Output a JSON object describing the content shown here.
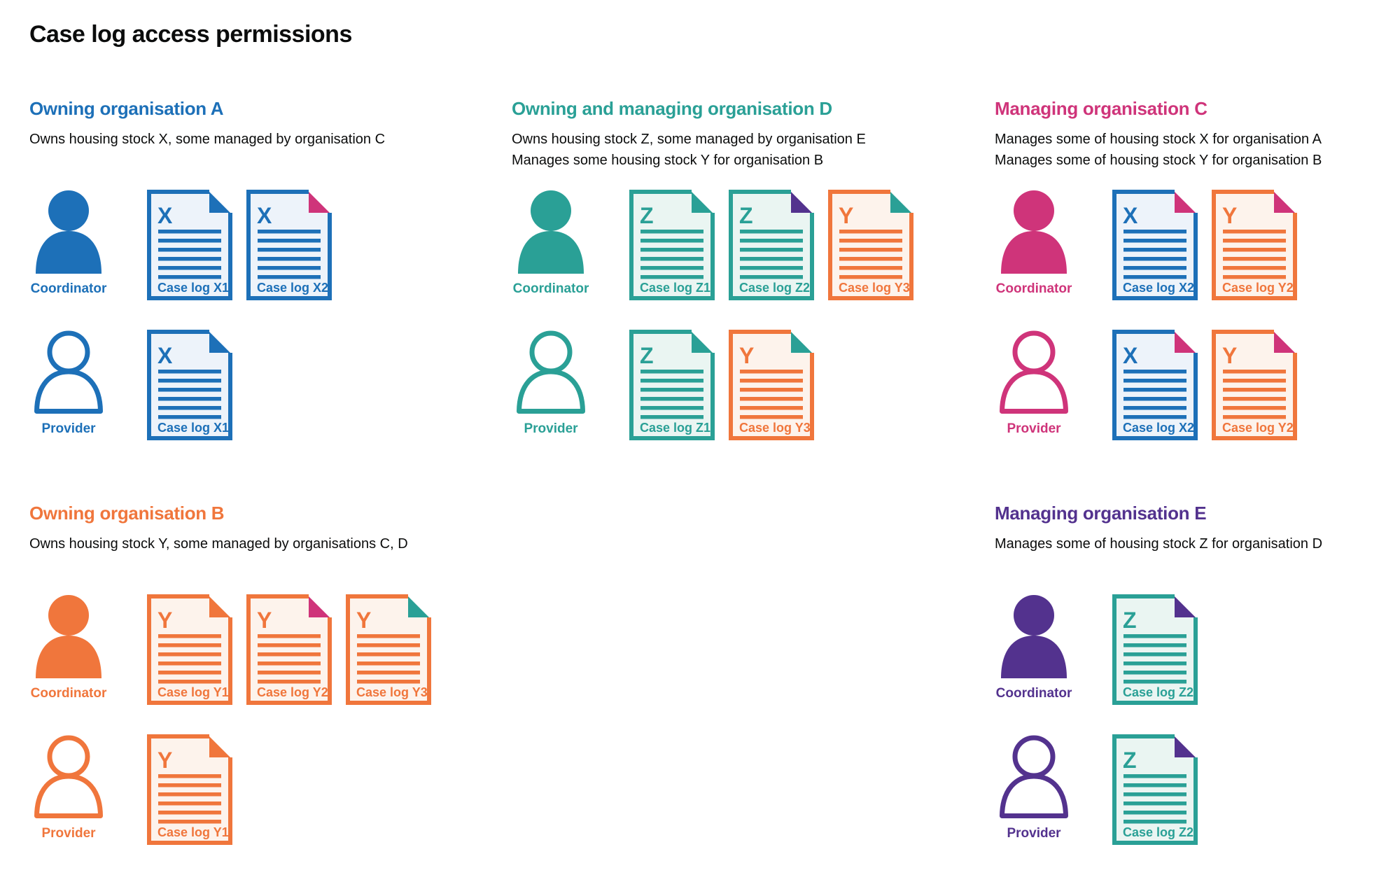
{
  "page": {
    "title": "Case log access permissions"
  },
  "palette": {
    "blue": "#1d70b8",
    "teal": "#2aa096",
    "pink": "#cf347a",
    "orange": "#f0763c",
    "purple": "#53328e",
    "text": "#0b0c0c",
    "blue_tint": "#edf3fa",
    "teal_tint": "#eaf5f2",
    "orange_tint": "#fdf3ec"
  },
  "organisations": [
    {
      "id": "A",
      "name": "Owning organisation A",
      "color": "blue",
      "col": 0,
      "row": 0,
      "description_lines": [
        "Owns housing stock X, some managed by organisation C"
      ],
      "roles": [
        {
          "label": "Coordinator",
          "person_style": "filled",
          "documents": [
            {
              "letter": "X",
              "label": "Case log X1",
              "stock": "blue",
              "fold": "blue"
            },
            {
              "letter": "X",
              "label": "Case log X2",
              "stock": "blue",
              "fold": "pink"
            }
          ]
        },
        {
          "label": "Provider",
          "person_style": "outline",
          "documents": [
            {
              "letter": "X",
              "label": "Case log X1",
              "stock": "blue",
              "fold": "blue"
            }
          ]
        }
      ]
    },
    {
      "id": "D",
      "name": "Owning and managing organisation D",
      "color": "teal",
      "col": 1,
      "row": 0,
      "description_lines": [
        "Owns housing stock Z, some managed by organisation E",
        "Manages some housing stock Y for organisation B"
      ],
      "roles": [
        {
          "label": "Coordinator",
          "person_style": "filled",
          "documents": [
            {
              "letter": "Z",
              "label": "Case log Z1",
              "stock": "teal",
              "fold": "teal"
            },
            {
              "letter": "Z",
              "label": "Case log Z2",
              "stock": "teal",
              "fold": "purple"
            },
            {
              "letter": "Y",
              "label": "Case log Y3",
              "stock": "orange",
              "fold": "teal"
            }
          ]
        },
        {
          "label": "Provider",
          "person_style": "outline",
          "documents": [
            {
              "letter": "Z",
              "label": "Case log Z1",
              "stock": "teal",
              "fold": "teal"
            },
            {
              "letter": "Y",
              "label": "Case log Y3",
              "stock": "orange",
              "fold": "teal"
            }
          ]
        }
      ]
    },
    {
      "id": "C",
      "name": "Managing organisation C",
      "color": "pink",
      "col": 2,
      "row": 0,
      "description_lines": [
        "Manages some of housing stock X for organisation A",
        "Manages some of housing stock Y for organisation B"
      ],
      "roles": [
        {
          "label": "Coordinator",
          "person_style": "filled",
          "documents": [
            {
              "letter": "X",
              "label": "Case log X2",
              "stock": "blue",
              "fold": "pink"
            },
            {
              "letter": "Y",
              "label": "Case log Y2",
              "stock": "orange",
              "fold": "pink"
            }
          ]
        },
        {
          "label": "Provider",
          "person_style": "outline",
          "documents": [
            {
              "letter": "X",
              "label": "Case log X2",
              "stock": "blue",
              "fold": "pink"
            },
            {
              "letter": "Y",
              "label": "Case log Y2",
              "stock": "orange",
              "fold": "pink"
            }
          ]
        }
      ]
    },
    {
      "id": "B",
      "name": "Owning organisation B",
      "color": "orange",
      "col": 0,
      "row": 1,
      "description_lines": [
        "Owns housing stock Y, some managed by organisations C, D"
      ],
      "roles": [
        {
          "label": "Coordinator",
          "person_style": "filled",
          "documents": [
            {
              "letter": "Y",
              "label": "Case log Y1",
              "stock": "orange",
              "fold": "orange"
            },
            {
              "letter": "Y",
              "label": "Case log Y2",
              "stock": "orange",
              "fold": "pink"
            },
            {
              "letter": "Y",
              "label": "Case log Y3",
              "stock": "orange",
              "fold": "teal"
            }
          ]
        },
        {
          "label": "Provider",
          "person_style": "outline",
          "documents": [
            {
              "letter": "Y",
              "label": "Case log Y1",
              "stock": "orange",
              "fold": "orange"
            }
          ]
        }
      ]
    },
    {
      "id": "E",
      "name": "Managing organisation E",
      "color": "purple",
      "col": 2,
      "row": 1,
      "description_lines": [
        "Manages some of housing stock Z for organisation D"
      ],
      "roles": [
        {
          "label": "Coordinator",
          "person_style": "filled",
          "documents": [
            {
              "letter": "Z",
              "label": "Case log Z2",
              "stock": "teal",
              "fold": "purple"
            }
          ]
        },
        {
          "label": "Provider",
          "person_style": "outline",
          "documents": [
            {
              "letter": "Z",
              "label": "Case log Z2",
              "stock": "teal",
              "fold": "purple"
            }
          ]
        }
      ]
    }
  ]
}
